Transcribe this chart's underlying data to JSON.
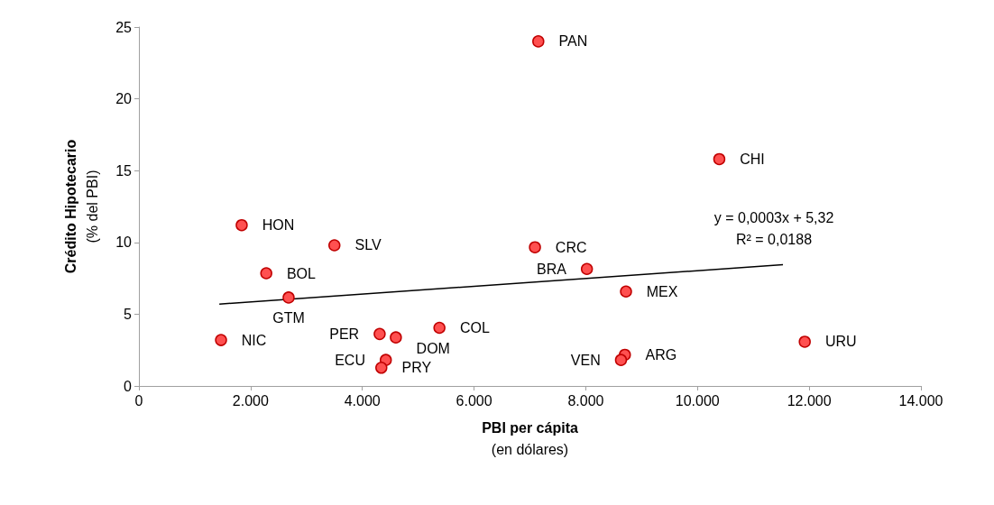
{
  "chart_data": {
    "type": "scatter",
    "xlabel": "PBI per cápita\n(en dólares)",
    "ylabel": "Crédito Hipotecario\n(% del PBI)",
    "x": [
      7150,
      10390,
      1840,
      3500,
      7090,
      2280,
      8020,
      8720,
      2680,
      1470,
      4310,
      4600,
      5380,
      4420,
      4340,
      11920,
      8700,
      8630
    ],
    "series": [
      {
        "color": "#ff5050",
        "marker": "circle",
        "values": [
          24.0,
          15.8,
          11.2,
          9.8,
          9.66,
          7.85,
          8.15,
          6.58,
          6.16,
          3.2,
          3.62,
          3.38,
          4.05,
          1.81,
          1.27,
          3.08,
          2.17,
          1.81
        ]
      },
      {
        "type": "line",
        "color": "#000000",
        "marker": "none",
        "line_style": "solid",
        "x": [
          1440,
          11530
        ],
        "values": [
          5.7,
          8.45
        ]
      }
    ],
    "annotations": [
      {
        "text": "PAN",
        "x": 7150,
        "y": 24.0
      },
      {
        "text": "CHI",
        "x": 10390,
        "y": 15.8
      },
      {
        "text": "HON",
        "x": 1840,
        "y": 11.2
      },
      {
        "text": "SLV",
        "x": 3500,
        "y": 9.8
      },
      {
        "text": "CRC",
        "x": 7090,
        "y": 9.66
      },
      {
        "text": "BOL",
        "x": 2280,
        "y": 7.85
      },
      {
        "text": "BRA",
        "x": 8020,
        "y": 8.15
      },
      {
        "text": "MEX",
        "x": 8720,
        "y": 6.58
      },
      {
        "text": "GTM",
        "x": 2680,
        "y": 6.16
      },
      {
        "text": "NIC",
        "x": 1470,
        "y": 3.2
      },
      {
        "text": "PER",
        "x": 4310,
        "y": 3.62
      },
      {
        "text": "DOM",
        "x": 4600,
        "y": 3.38
      },
      {
        "text": "COL",
        "x": 5380,
        "y": 4.05
      },
      {
        "text": "ECU",
        "x": 4420,
        "y": 1.81
      },
      {
        "text": "PRY",
        "x": 4340,
        "y": 1.27
      },
      {
        "text": "URU",
        "x": 11920,
        "y": 3.08
      },
      {
        "text": "ARG",
        "x": 8700,
        "y": 2.17
      },
      {
        "text": "VEN",
        "x": 8630,
        "y": 1.81
      },
      "y = 0,0003x + 5,32",
      "R² = 0,0188"
    ],
    "xlim": [
      0,
      14000
    ],
    "xticks": [
      0,
      {
        "value": 2000,
        "label": "2.000"
      },
      {
        "value": 4000,
        "label": "4.000"
      },
      {
        "value": 6000,
        "label": "6.000"
      },
      {
        "value": 8000,
        "label": "8.000"
      },
      {
        "value": 10000,
        "label": "10.000"
      },
      {
        "value": 12000,
        "label": "12.000"
      },
      {
        "value": 14000,
        "label": "14.000"
      }
    ],
    "ylim": [
      0,
      25
    ],
    "yticks": [
      0,
      5,
      10,
      15,
      20,
      25
    ],
    "grid": false
  }
}
